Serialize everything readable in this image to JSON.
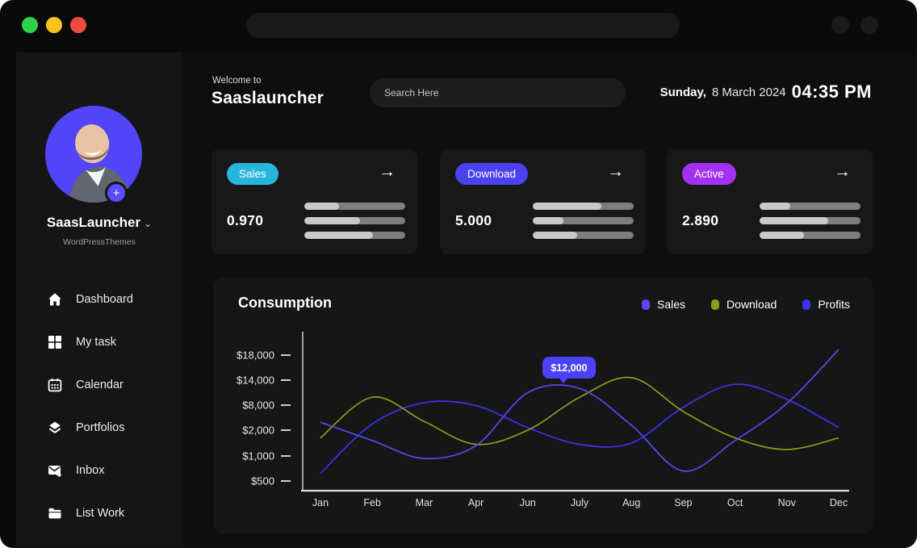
{
  "window": {
    "traffic_lights": [
      {
        "name": "green",
        "color": "#2ed14b"
      },
      {
        "name": "yellow",
        "color": "#fdc319"
      },
      {
        "name": "red",
        "color": "#ee4b43"
      }
    ],
    "address_bar_value": ""
  },
  "sidebar": {
    "profile": {
      "name": "SaasLauncher",
      "chevron": "⌄",
      "subtitle": "WordPressThemes",
      "add_button": "+",
      "avatar_color": "#5145f7"
    },
    "items": [
      {
        "icon": "home-icon",
        "label": "Dashboard"
      },
      {
        "icon": "grid-icon",
        "label": "My task"
      },
      {
        "icon": "calendar-icon",
        "label": "Calendar"
      },
      {
        "icon": "layers-icon",
        "label": "Portfolios"
      },
      {
        "icon": "inbox-icon",
        "label": "Inbox"
      },
      {
        "icon": "folder-icon",
        "label": "List Work"
      }
    ]
  },
  "header": {
    "welcome": "Welcome to",
    "brand": "Saaslauncher",
    "search_placeholder": "Search Here",
    "day": "Sunday,",
    "date": "8 March 2024",
    "time": "04:35 PM"
  },
  "stat_cards": [
    {
      "badge": "Sales",
      "badge_color": "#27b5de",
      "value": "0.970",
      "arrow": "→",
      "bars": [
        34,
        55,
        68
      ]
    },
    {
      "badge": "Download",
      "badge_color": "#4a42ee",
      "value": "5.000",
      "arrow": "→",
      "bars": [
        68,
        30,
        44
      ]
    },
    {
      "badge": "Active",
      "badge_color": "#a431f0",
      "value": "2.890",
      "arrow": "→",
      "bars": [
        30,
        68,
        44
      ]
    }
  ],
  "chart": {
    "title": "Consumption",
    "tooltip": {
      "label": "$12,000",
      "series": "Sales",
      "category": "July"
    }
  },
  "chart_data": {
    "type": "line",
    "title": "Consumption",
    "categories": [
      "Jan",
      "Feb",
      "Mar",
      "Apr",
      "Jun",
      "July",
      "Aug",
      "Sep",
      "Oct",
      "Nov",
      "Dec"
    ],
    "y_ticks": [
      500,
      1000,
      2000,
      8000,
      14000,
      18000
    ],
    "y_tick_labels": [
      "$500",
      "$1,000",
      "$2,000",
      "$8,000",
      "$14,000",
      "$18,000"
    ],
    "series": [
      {
        "name": "Sales",
        "color": "#564af2",
        "values": [
          3900,
          1600,
          950,
          1400,
          11000,
          12000,
          3200,
          700,
          1600,
          8400,
          18900
        ]
      },
      {
        "name": "Download",
        "color": "#8a9c1e",
        "values": [
          1700,
          9900,
          4100,
          1450,
          2000,
          9900,
          14400,
          6500,
          1700,
          1250,
          1700
        ]
      },
      {
        "name": "Profits",
        "color": "#3b33ee",
        "values": [
          650,
          3500,
          8600,
          7900,
          2600,
          1450,
          1500,
          7500,
          13000,
          9400,
          2600
        ]
      }
    ],
    "annotation": {
      "series": "Sales",
      "category": "July",
      "value": 12000,
      "label": "$12,000"
    },
    "legend_position": "top-right",
    "grid": false,
    "xlabel": "",
    "ylabel": ""
  }
}
